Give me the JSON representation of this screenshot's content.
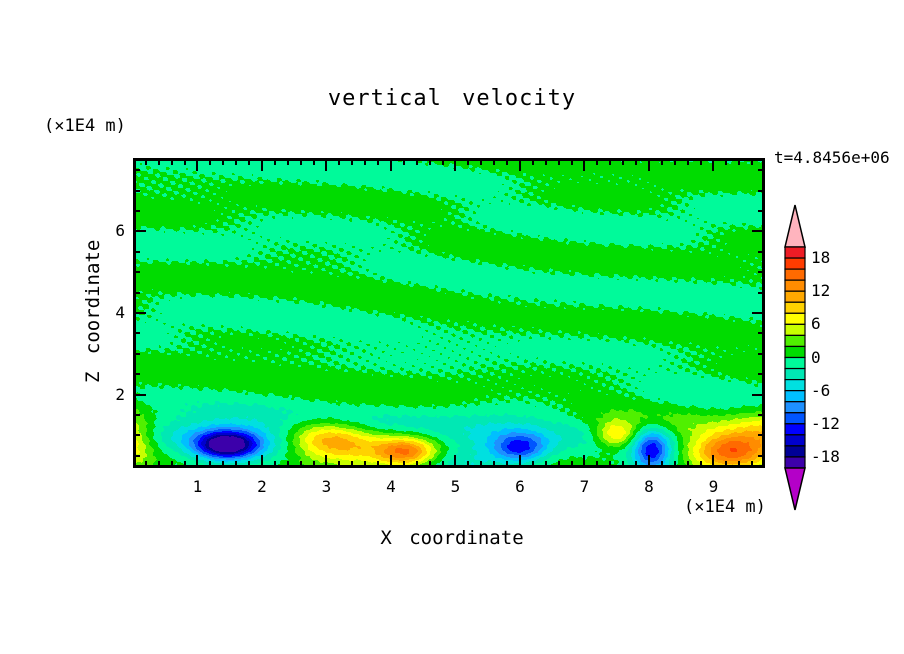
{
  "chart_data": {
    "type": "filled_contour",
    "title": "vertical velocity",
    "time_label": "t=4.8456e+06",
    "xlabel": "X coordinate",
    "ylabel": "Z coordinate",
    "x_unit_label": "(×1E4 m)",
    "z_unit_label": "(×1E4 m)",
    "x_range": [
      0,
      9.8
    ],
    "z_range": [
      0.2,
      7.8
    ],
    "x_major_ticks": [
      "1",
      "2",
      "3",
      "4",
      "5",
      "6",
      "7",
      "8",
      "9"
    ],
    "x_minor_step": 0.2,
    "z_major_ticks": [
      "2",
      "4",
      "6"
    ],
    "z_minor_step": 0.5,
    "grid": false,
    "contour_interval": 2,
    "level_min": -20,
    "level_max": 20,
    "colorbar": {
      "position": "right",
      "labels": [
        "18",
        "12",
        "6",
        "0",
        "-6",
        "-12",
        "-18"
      ],
      "first_label_cell_boundary": 1,
      "label_every_n_cells": 3,
      "colors_high_to_low": [
        "#ee1c25",
        "#ff3c00",
        "#ff6a00",
        "#ff8c00",
        "#ffa800",
        "#ffd200",
        "#ffff00",
        "#c8ff00",
        "#50f000",
        "#00dc00",
        "#00fa9a",
        "#00e8b4",
        "#00e0e0",
        "#00bfff",
        "#1e90ff",
        "#0055ff",
        "#0000ff",
        "#0000cd",
        "#000096",
        "#3c00aa"
      ],
      "over_color": "#ffb4be",
      "under_color": "#b400c8"
    },
    "background_field": "weak fluctuations between -2 and +2 (two green shades) filling most of the domain, elongated horizontally; stronger speckle near z=1 to 1.5",
    "features": [
      {
        "x": -0.1,
        "z": 0.95,
        "amp": 9,
        "sx": 0.4,
        "sz": 0.65,
        "desc": "updraft at left edge (yellow)"
      },
      {
        "x": 1.45,
        "z": 0.75,
        "amp": -17,
        "sx": 0.45,
        "sz": 0.33,
        "desc": "strong downdraft core (dark blue)"
      },
      {
        "x": 1.55,
        "z": 0.9,
        "amp": -6,
        "sx": 0.95,
        "sz": 0.6,
        "desc": "downdraft halo (cyan)"
      },
      {
        "x": 3.0,
        "z": 0.9,
        "amp": 9,
        "sx": 0.62,
        "sz": 0.45,
        "desc": "updraft (yellow-orange)"
      },
      {
        "x": 3.6,
        "z": 0.6,
        "amp": 4.5,
        "sx": 0.9,
        "sz": 0.5,
        "desc": "broad weak updraft"
      },
      {
        "x": 4.25,
        "z": 0.6,
        "amp": 10.5,
        "sx": 0.45,
        "sz": 0.34,
        "desc": "updraft with orange core"
      },
      {
        "x": 5.1,
        "z": 0.35,
        "amp": -4.5,
        "sx": 0.65,
        "sz": 0.45,
        "desc": "weak downdraft (turquoise)"
      },
      {
        "x": 6.0,
        "z": 0.68,
        "amp": -11,
        "sx": 0.42,
        "sz": 0.36,
        "desc": "downdraft (blue)"
      },
      {
        "x": 5.75,
        "z": 0.95,
        "amp": -3.5,
        "sx": 0.9,
        "sz": 0.55,
        "desc": "downdraft halo"
      },
      {
        "x": 7.5,
        "z": 1.0,
        "amp": 9.5,
        "sx": 0.34,
        "sz": 0.34,
        "desc": "small updraft (yellow)"
      },
      {
        "x": 8.05,
        "z": 0.62,
        "amp": -12.5,
        "sx": 0.3,
        "sz": 0.55,
        "desc": "narrow downdraft streak (blue)"
      },
      {
        "x": 9.25,
        "z": 0.6,
        "amp": 15,
        "sx": 0.62,
        "sz": 0.48,
        "desc": "strong updraft (orange core)"
      },
      {
        "x": 9.9,
        "z": 1.1,
        "amp": 6,
        "sx": 0.6,
        "sz": 0.6,
        "desc": "updraft at right edge"
      }
    ]
  }
}
